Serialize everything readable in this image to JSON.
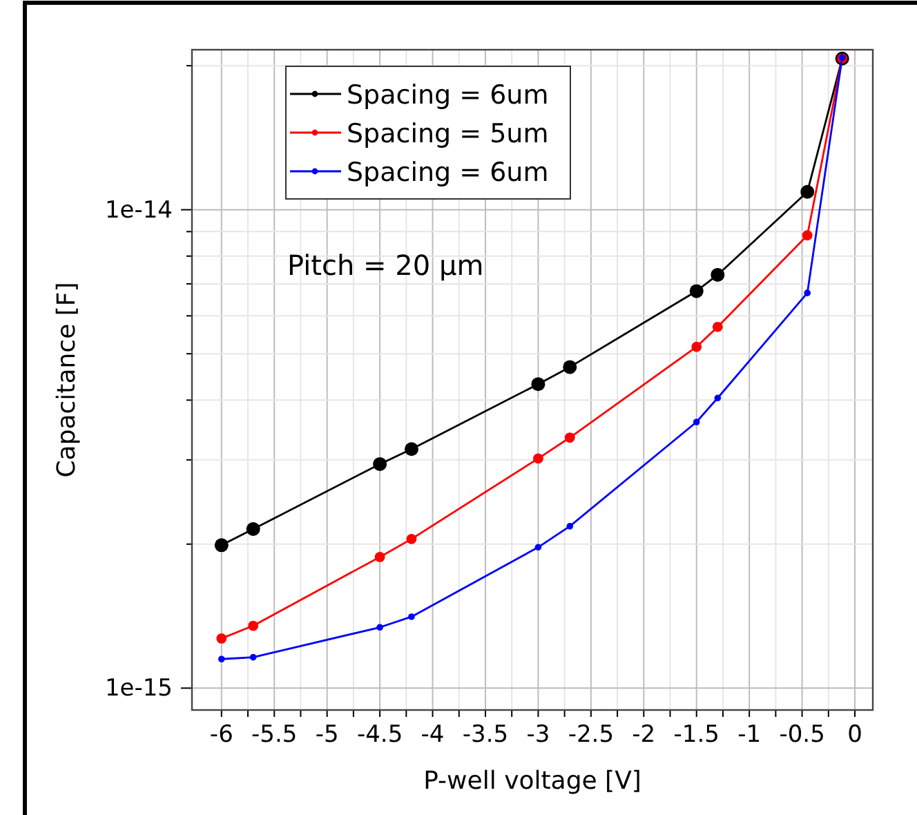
{
  "chart_data": {
    "type": "line",
    "xlabel": "P-well voltage [V]",
    "ylabel": "Capacitance [F]",
    "x": [
      -6,
      -5.7,
      -4.5,
      -4.2,
      -3,
      -2.7,
      -1.5,
      -1.3,
      -0.45,
      -0.12
    ],
    "series": [
      {
        "name": "Spacing = 6um",
        "color": "#000000",
        "values": [
          1.99e-15,
          2.15e-15,
          2.94e-15,
          3.16e-15,
          4.32e-15,
          4.69e-15,
          6.76e-15,
          7.31e-15,
          1.09e-14,
          2.07e-14
        ]
      },
      {
        "name": "Spacing = 5um",
        "color": "#ff0000",
        "values": [
          1.27e-15,
          1.35e-15,
          1.88e-15,
          2.05e-15,
          3.02e-15,
          3.34e-15,
          5.17e-15,
          5.69e-15,
          8.84e-15,
          2.07e-14
        ]
      },
      {
        "name": "Spacing = 6um",
        "color": "#0000ff",
        "values": [
          1.15e-15,
          1.16e-15,
          1.34e-15,
          1.41e-15,
          1.97e-15,
          2.18e-15,
          3.6e-15,
          4.04e-15,
          6.7e-15,
          2.08e-14
        ]
      }
    ],
    "annotations": [
      "Pitch = 20 µm"
    ],
    "log": "y",
    "grid": true,
    "legend": "top left",
    "marker": "circle",
    "line_style": "solid",
    "xlim": [
      -6.28,
      0.17
    ],
    "xticks": [
      -6,
      {
        "value": -5.75,
        "label": null
      },
      -5.5,
      {
        "value": -5.25,
        "label": null
      },
      -5,
      {
        "value": -4.75,
        "label": null
      },
      -4.5,
      {
        "value": -4.25,
        "label": null
      },
      -4,
      {
        "value": -3.75,
        "label": null
      },
      -3.5,
      {
        "value": -3.25,
        "label": null
      },
      -3,
      {
        "value": -2.75,
        "label": null
      },
      -2.5,
      {
        "value": -2.25,
        "label": null
      },
      -2,
      {
        "value": -1.75,
        "label": null
      },
      -1.5,
      {
        "value": -1.25,
        "label": null
      },
      -1,
      {
        "value": -0.75,
        "label": null
      },
      -0.5,
      {
        "value": -0.25,
        "label": null
      },
      0
    ],
    "ylim": [
      9e-16,
      2.16e-14
    ],
    "yticks": [
      {
        "value": 1e-15,
        "label": "1e-15"
      },
      {
        "value": 2e-15,
        "label": null
      },
      {
        "value": 3e-15,
        "label": null
      },
      {
        "value": 4e-15,
        "label": null
      },
      {
        "value": 5e-15,
        "label": null
      },
      {
        "value": 6e-15,
        "label": null
      },
      {
        "value": 7e-15,
        "label": null
      },
      {
        "value": 8e-15,
        "label": null
      },
      {
        "value": 9e-15,
        "label": null
      },
      {
        "value": 1e-14,
        "label": "1e-14"
      },
      {
        "value": 2e-14,
        "label": null
      }
    ]
  }
}
